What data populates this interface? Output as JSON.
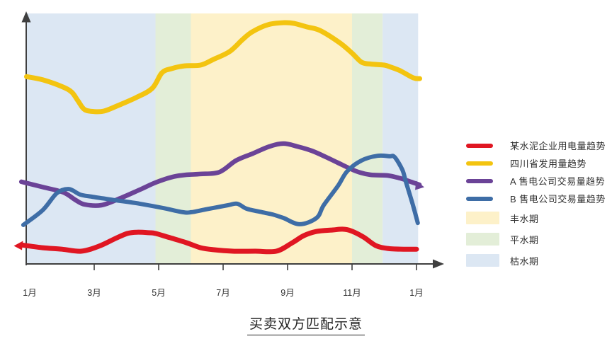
{
  "title": {
    "text": "买卖双方匹配示意"
  },
  "colors": {
    "axis": "#3f3f3f",
    "text": "#333333",
    "background": "#ffffff"
  },
  "legend": {
    "items": [
      {
        "label": "某水泥企业用电量趋势",
        "color": "#e01622",
        "type": "line"
      },
      {
        "label": "四川省发用量趋势",
        "color": "#f3c410",
        "type": "line"
      },
      {
        "label": "A 售电公司交易量趋势",
        "color": "#6b4397",
        "type": "line"
      },
      {
        "label": "B 售电公司交易量趋势",
        "color": "#3e6da6",
        "type": "line"
      },
      {
        "label": "丰水期",
        "color": "#fdf1c9",
        "type": "band"
      },
      {
        "label": "平水期",
        "color": "#e3eed8",
        "type": "band"
      },
      {
        "label": "枯水期",
        "color": "#dce7f3",
        "type": "band"
      }
    ]
  },
  "chart_data": {
    "type": "line",
    "title": "买卖双方匹配示意",
    "xlabel": "",
    "ylabel": "",
    "x_axis": {
      "tick_labels": [
        "1月",
        "3月",
        "5月",
        "7月",
        "9月",
        "11月",
        "1月"
      ],
      "tick_months": [
        1,
        3,
        5,
        7,
        9,
        11,
        13
      ]
    },
    "y_axis": {
      "tick_labels": [],
      "note": "no numeric scale shown; values are relative 0-100"
    },
    "grid": false,
    "legend_position": "right",
    "seasons": [
      {
        "id": "dry-1",
        "label": "枯水期",
        "color": "#dce7f3",
        "start_month": 0.9,
        "end_month": 4.9
      },
      {
        "id": "normal-1",
        "label": "平水期",
        "color": "#e3eed8",
        "start_month": 4.9,
        "end_month": 6.0
      },
      {
        "id": "wet",
        "label": "丰水期",
        "color": "#fdf1c9",
        "start_month": 6.0,
        "end_month": 11.0
      },
      {
        "id": "normal-2",
        "label": "平水期",
        "color": "#e3eed8",
        "start_month": 11.0,
        "end_month": 11.95
      },
      {
        "id": "dry-2",
        "label": "枯水期",
        "color": "#dce7f3",
        "start_month": 11.95,
        "end_month": 13.05
      }
    ],
    "series": [
      {
        "id": "sichuan",
        "name": "四川省发用量趋势",
        "color": "#f3c410",
        "stroke_width": 7,
        "points": [
          [
            0.9,
            75
          ],
          [
            1.4,
            73.7
          ],
          [
            2.0,
            71
          ],
          [
            2.3,
            68.8
          ],
          [
            2.5,
            65.2
          ],
          [
            2.7,
            61.8
          ],
          [
            3.0,
            61
          ],
          [
            3.3,
            61.2
          ],
          [
            3.7,
            63.2
          ],
          [
            4.3,
            66.6
          ],
          [
            4.8,
            70.3
          ],
          [
            5.1,
            76.5
          ],
          [
            5.4,
            78.2
          ],
          [
            5.8,
            79.3
          ],
          [
            6.3,
            79.6
          ],
          [
            6.7,
            81.9
          ],
          [
            7.2,
            85
          ],
          [
            7.6,
            89.8
          ],
          [
            7.9,
            92.9
          ],
          [
            8.4,
            95.8
          ],
          [
            8.9,
            96.6
          ],
          [
            9.2,
            96.3
          ],
          [
            9.6,
            94.9
          ],
          [
            10.0,
            93.5
          ],
          [
            10.6,
            88.7
          ],
          [
            11.0,
            84.4
          ],
          [
            11.3,
            80.7
          ],
          [
            11.6,
            80
          ],
          [
            12.0,
            79.6
          ],
          [
            12.2,
            78.8
          ],
          [
            12.5,
            77.3
          ],
          [
            12.9,
            74.5
          ],
          [
            13.1,
            74.2
          ]
        ]
      },
      {
        "id": "company-a",
        "name": "A 售电公司交易量趋势",
        "color": "#6b4397",
        "stroke_width": 6.5,
        "end_arrow": true,
        "points": [
          [
            0.74,
            32.9
          ],
          [
            1.46,
            30.6
          ],
          [
            2.05,
            28.6
          ],
          [
            2.43,
            25.5
          ],
          [
            2.71,
            23.8
          ],
          [
            3.22,
            23.5
          ],
          [
            3.81,
            26.3
          ],
          [
            4.41,
            29.7
          ],
          [
            4.91,
            32.6
          ],
          [
            5.42,
            34.8
          ],
          [
            5.86,
            35.7
          ],
          [
            6.3,
            36
          ],
          [
            6.89,
            36.8
          ],
          [
            7.4,
            41.4
          ],
          [
            7.92,
            44.2
          ],
          [
            8.43,
            47
          ],
          [
            8.87,
            48.2
          ],
          [
            9.31,
            47
          ],
          [
            9.75,
            45.3
          ],
          [
            10.19,
            42.8
          ],
          [
            10.56,
            40.5
          ],
          [
            11.13,
            37.1
          ],
          [
            11.57,
            35.7
          ],
          [
            12.1,
            35.4
          ],
          [
            12.49,
            34.3
          ],
          [
            12.82,
            32.9
          ],
          [
            13.09,
            31.7
          ]
        ]
      },
      {
        "id": "company-b",
        "name": "B 售电公司交易量趋势",
        "color": "#3e6da6",
        "stroke_width": 6,
        "points": [
          [
            0.8,
            15.6
          ],
          [
            1.4,
            21.5
          ],
          [
            1.84,
            28.3
          ],
          [
            2.21,
            30
          ],
          [
            2.56,
            27.8
          ],
          [
            2.93,
            26.9
          ],
          [
            3.66,
            25.5
          ],
          [
            4.41,
            24.1
          ],
          [
            5.13,
            22.4
          ],
          [
            5.75,
            20.7
          ],
          [
            6.01,
            20.7
          ],
          [
            6.45,
            21.8
          ],
          [
            7.15,
            23.5
          ],
          [
            7.44,
            24.1
          ],
          [
            7.73,
            22.1
          ],
          [
            8.21,
            20.7
          ],
          [
            8.54,
            19.8
          ],
          [
            8.87,
            18.4
          ],
          [
            9.37,
            15.9
          ],
          [
            9.9,
            18.4
          ],
          [
            10.12,
            23.5
          ],
          [
            10.56,
            31.2
          ],
          [
            10.85,
            37.1
          ],
          [
            11.29,
            41.4
          ],
          [
            11.79,
            43.3
          ],
          [
            12.16,
            43.1
          ],
          [
            12.32,
            42.8
          ],
          [
            12.56,
            37.7
          ],
          [
            12.67,
            32.9
          ],
          [
            12.89,
            23.5
          ],
          [
            13.04,
            16.4
          ]
        ]
      },
      {
        "id": "cement",
        "name": "某水泥企业用电量趋势",
        "color": "#e01622",
        "stroke_width": 7,
        "start_arrow": true,
        "points": [
          [
            0.74,
            7.6
          ],
          [
            1.4,
            6.5
          ],
          [
            2.0,
            5.9
          ],
          [
            2.6,
            5.1
          ],
          [
            3.15,
            7.1
          ],
          [
            3.66,
            10.2
          ],
          [
            4.03,
            12.2
          ],
          [
            4.32,
            12.7
          ],
          [
            4.7,
            12.5
          ],
          [
            4.9,
            12.2
          ],
          [
            5.35,
            10.5
          ],
          [
            5.86,
            8.5
          ],
          [
            6.3,
            6.5
          ],
          [
            6.7,
            5.7
          ],
          [
            7.3,
            5.1
          ],
          [
            8.0,
            5.1
          ],
          [
            8.65,
            5.1
          ],
          [
            9.15,
            8.5
          ],
          [
            9.5,
            11.3
          ],
          [
            9.9,
            13
          ],
          [
            10.4,
            13.6
          ],
          [
            10.7,
            13.9
          ],
          [
            10.96,
            13.3
          ],
          [
            11.35,
            10.8
          ],
          [
            11.73,
            7.4
          ],
          [
            12.1,
            6.2
          ],
          [
            12.6,
            5.9
          ],
          [
            13.0,
            5.9
          ]
        ]
      }
    ]
  }
}
